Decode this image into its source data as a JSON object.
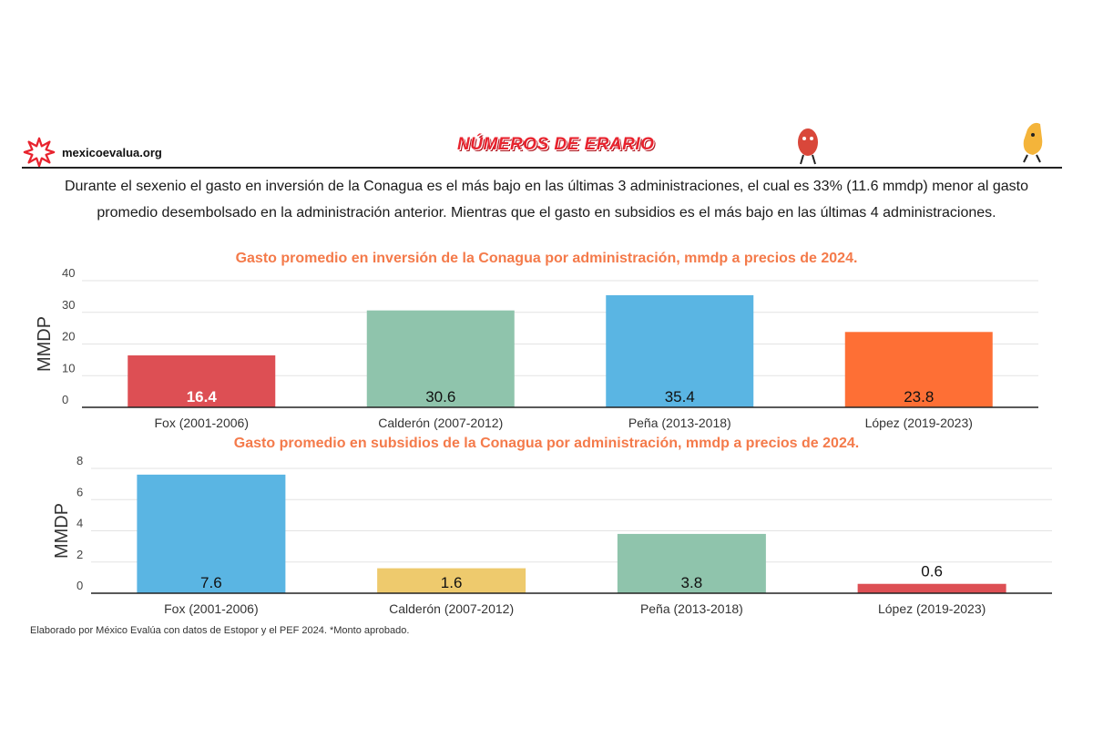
{
  "header": {
    "site_name": "mexicoevalua.org",
    "brand": "NÚMEROS DE ERARIO"
  },
  "subtitle": "Durante el sexenio el gasto en inversión de la Conagua es el más bajo en las últimas 3 administraciones, el cual es 33% (11.6 mmdp) menor al gasto promedio desembolsado en la administración anterior. Mientras que el gasto en subsidios es el más bajo en las últimas 4 administraciones.",
  "footnote": "Elaborado por México Evalúa con datos de Estopor y el PEF 2024. *Monto aprobado.",
  "chart_data": [
    {
      "type": "bar",
      "title": "Gasto promedio en inversión de la Conagua por administración, mmdp a precios de 2024.",
      "ylabel": "MMDP",
      "xlabel": "",
      "ylim": [
        0,
        40
      ],
      "yticks": [
        0,
        10,
        20,
        30,
        40
      ],
      "grid": true,
      "categories": [
        "Fox (2001-2006)",
        "Calderón (2007-2012)",
        "Peña (2013-2018)",
        "López (2019-2023)"
      ],
      "values": [
        16.4,
        30.6,
        35.4,
        23.8
      ],
      "value_labels": [
        "16.4",
        "30.6",
        "35.4",
        "23.8"
      ],
      "colors": [
        "#dd4f54",
        "#8fc4ac",
        "#5ab5e3",
        "#fe6f35"
      ]
    },
    {
      "type": "bar",
      "title": "Gasto promedio en subsidios de la Conagua por administración, mmdp a precios de 2024.",
      "ylabel": "MMDP",
      "xlabel": "",
      "ylim": [
        0,
        8
      ],
      "yticks": [
        0,
        2,
        4,
        6,
        8
      ],
      "grid": true,
      "categories": [
        "Fox (2001-2006)",
        "Calderón (2007-2012)",
        "Peña (2013-2018)",
        "López (2019-2023)"
      ],
      "values": [
        7.6,
        1.6,
        3.8,
        0.6
      ],
      "value_labels": [
        "7.6",
        "1.6",
        "3.8",
        "0.6"
      ],
      "colors": [
        "#5ab5e3",
        "#eeca6d",
        "#8fc4ac",
        "#dd4f54"
      ]
    }
  ]
}
